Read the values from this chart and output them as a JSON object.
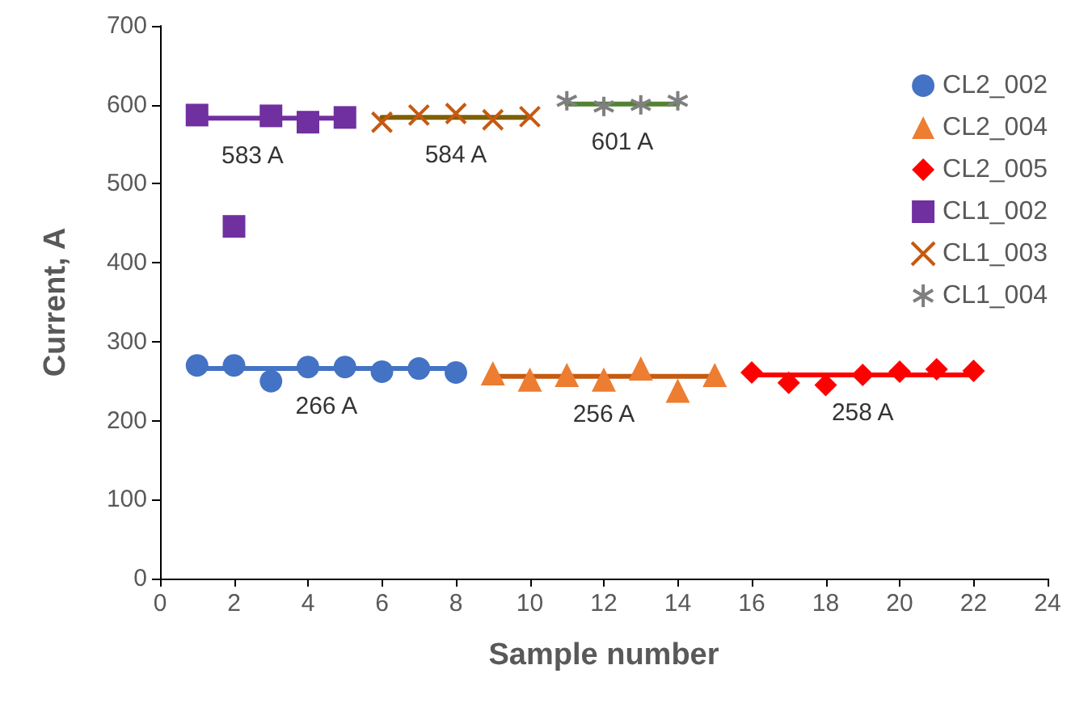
{
  "chart_data": {
    "type": "scatter",
    "xlabel": "Sample number",
    "ylabel": "Current, A",
    "xlim": [
      0,
      24
    ],
    "xticks": [
      0,
      2,
      4,
      6,
      8,
      10,
      12,
      14,
      16,
      18,
      20,
      22,
      24
    ],
    "ylim": [
      0,
      700
    ],
    "yticks": [
      0,
      100,
      200,
      300,
      400,
      500,
      600,
      700
    ],
    "grid": false,
    "legend": "top right",
    "series": [
      {
        "name": "CL2_002",
        "color": "#4472c4",
        "marker": "circle",
        "x": [
          1,
          2,
          3,
          4,
          5,
          6,
          7,
          8
        ],
        "values": [
          270,
          270,
          250,
          268,
          268,
          262,
          266,
          261
        ]
      },
      {
        "name": "CL2_004",
        "color": "#ed7d31",
        "marker": "triangle",
        "x": [
          9,
          10,
          11,
          12,
          13,
          14,
          15
        ],
        "values": [
          260,
          252,
          258,
          252,
          266,
          238,
          258
        ]
      },
      {
        "name": "CL2_005",
        "color": "#ff0000",
        "marker": "diamond",
        "x": [
          16,
          17,
          18,
          19,
          20,
          21,
          22
        ],
        "values": [
          261,
          248,
          245,
          258,
          262,
          265,
          263
        ]
      },
      {
        "name": "CL1_002",
        "color": "#7030a0",
        "marker": "square",
        "x": [
          1,
          2,
          3,
          4,
          5
        ],
        "values": [
          587,
          446,
          586,
          578,
          584
        ]
      },
      {
        "name": "CL1_003",
        "color": "#c55a11",
        "marker": "cross",
        "x": [
          6,
          7,
          8,
          9,
          10
        ],
        "values": [
          578,
          587,
          589,
          581,
          585
        ]
      },
      {
        "name": "CL1_004",
        "color": "#7f7f7f",
        "x": [
          11,
          12,
          13,
          14
        ],
        "values": [
          605,
          598,
          600,
          605
        ]
      },
      {
        "type": "line",
        "color": "#4472c4",
        "marker": "none",
        "x": [
          1,
          8
        ],
        "values": [
          266,
          266
        ]
      },
      {
        "type": "line",
        "color": "#c55a11",
        "marker": "none",
        "x": [
          9,
          15
        ],
        "values": [
          256,
          256
        ]
      },
      {
        "type": "line",
        "color": "#ff0000",
        "marker": "none",
        "x": [
          16,
          22
        ],
        "values": [
          258,
          258
        ]
      },
      {
        "type": "line",
        "color": "#7030a0",
        "marker": "none",
        "x": [
          1,
          5
        ],
        "values": [
          583,
          583
        ]
      },
      {
        "type": "line",
        "color": "#7f6000",
        "marker": "none",
        "x": [
          6,
          10
        ],
        "values": [
          584,
          584
        ]
      },
      {
        "type": "line",
        "color": "#548235",
        "marker": "none",
        "x": [
          11,
          14
        ],
        "values": [
          601,
          601
        ]
      }
    ],
    "annotations": [
      {
        "text": "583 A",
        "x": 2.5,
        "y": 583
      },
      {
        "text": "584 A",
        "x": 8,
        "y": 584
      },
      {
        "text": "601 A",
        "x": 12.5,
        "y": 601
      },
      {
        "text": "266 A",
        "x": 4.5,
        "y": 266
      },
      {
        "text": "256 A",
        "x": 12,
        "y": 256
      },
      {
        "text": "258 A",
        "x": 19,
        "y": 258
      }
    ]
  }
}
